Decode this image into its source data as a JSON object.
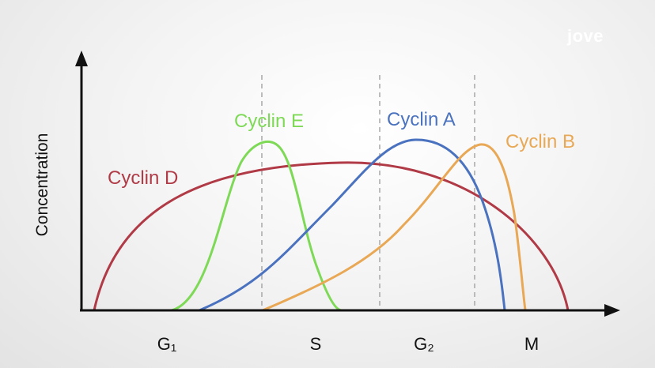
{
  "logo": {
    "text": "jove"
  },
  "axes": {
    "ylabel": "Concentration"
  },
  "phases": [
    {
      "name": "G1",
      "label": "G₁"
    },
    {
      "name": "S",
      "label": "S"
    },
    {
      "name": "G2",
      "label": "G₂"
    },
    {
      "name": "M",
      "label": "M"
    }
  ],
  "series": [
    {
      "id": "cyclin-d",
      "name": "Cyclin D",
      "color": "#b03a46"
    },
    {
      "id": "cyclin-e",
      "name": "Cyclin E",
      "color": "#7ed957"
    },
    {
      "id": "cyclin-a",
      "name": "Cyclin A",
      "color": "#4a72bf"
    },
    {
      "id": "cyclin-b",
      "name": "Cyclin B",
      "color": "#e8a855"
    }
  ],
  "colors": {
    "axis": "#111111",
    "divider": "#a8a8a8",
    "logo": "#ffffff"
  }
}
